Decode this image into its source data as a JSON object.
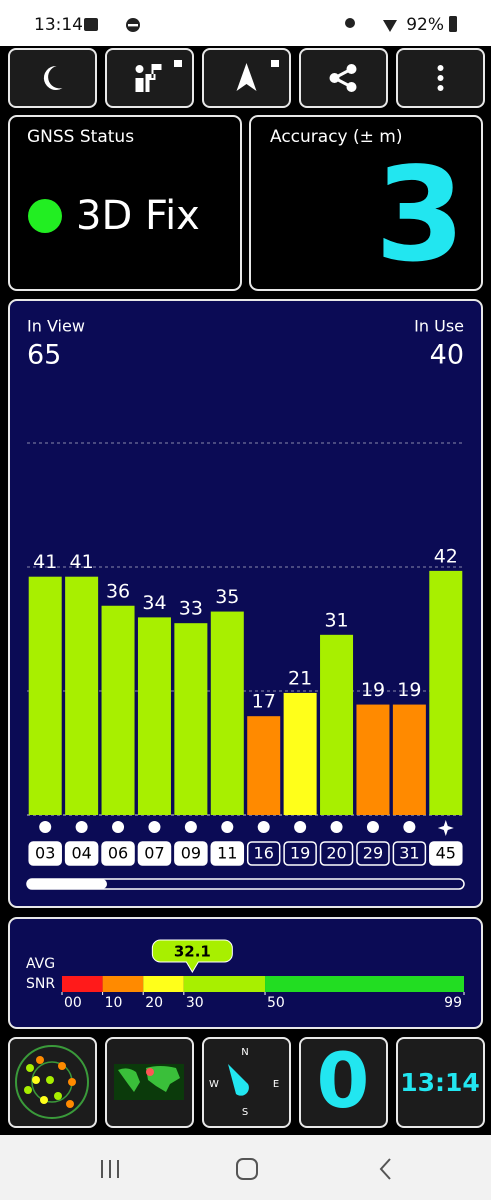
{
  "status_bar": {
    "time": "13:14",
    "battery": "92%"
  },
  "gnss_status": {
    "label": "GNSS Status",
    "fix": "3D Fix"
  },
  "accuracy": {
    "label": "Accuracy (± m)",
    "value": 3
  },
  "satellites": {
    "in_view_label": "In View",
    "in_view": 65,
    "in_use_label": "In Use",
    "in_use": 40,
    "ylim": [
      0,
      64
    ],
    "prns": [
      "03",
      "04",
      "06",
      "07",
      "09",
      "11",
      "16",
      "19",
      "20",
      "29",
      "31",
      "45"
    ],
    "values": [
      41,
      41,
      36,
      34,
      33,
      35,
      17,
      21,
      31,
      19,
      19,
      42
    ],
    "colors": [
      "#a8ef00",
      "#a8ef00",
      "#a8ef00",
      "#a8ef00",
      "#a8ef00",
      "#a8ef00",
      "#ff8a00",
      "#ffff1a",
      "#a8ef00",
      "#ff8a00",
      "#ff8a00",
      "#a8ef00"
    ],
    "used": [
      true,
      true,
      true,
      true,
      true,
      true,
      false,
      false,
      false,
      false,
      false,
      true
    ],
    "markers": [
      "dot",
      "dot",
      "dot",
      "dot",
      "dot",
      "dot",
      "dot",
      "dot",
      "dot",
      "dot",
      "dot",
      "star"
    ]
  },
  "snr": {
    "avg_label": "AVG",
    "snr_label": "SNR",
    "average": 32.1,
    "xlim": [
      0,
      99
    ],
    "segments": [
      {
        "from": 0,
        "to": 10,
        "color": "#ff1a1a"
      },
      {
        "from": 10,
        "to": 20,
        "color": "#ff8a00"
      },
      {
        "from": 20,
        "to": 30,
        "color": "#ffff1a"
      },
      {
        "from": 30,
        "to": 50,
        "color": "#a8ef00"
      },
      {
        "from": 50,
        "to": 99,
        "color": "#22dd22"
      }
    ],
    "ticks": [
      {
        "value": 0,
        "label": "00"
      },
      10,
      20,
      30,
      50,
      99
    ]
  },
  "compass": {
    "n": "N",
    "e": "E",
    "s": "S",
    "w": "W"
  },
  "satellite_count": 0,
  "clock": "13:14"
}
